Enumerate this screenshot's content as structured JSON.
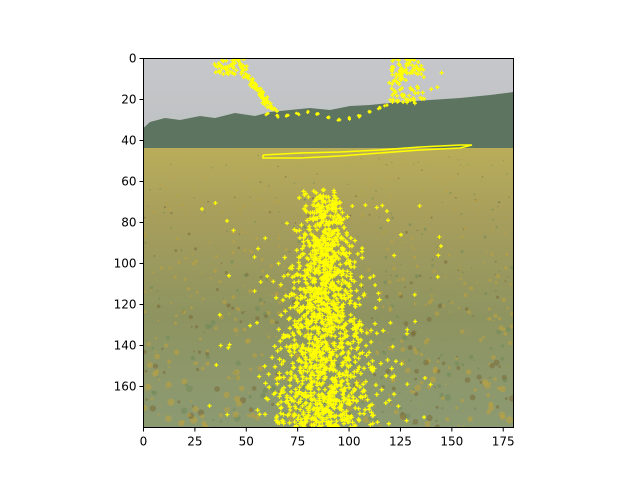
{
  "chart_data": {
    "type": "image",
    "title": "",
    "xlabel": "",
    "ylabel": "",
    "xlim": [
      0,
      180
    ],
    "ylim": [
      180,
      0
    ],
    "x_ticks": [
      0,
      25,
      50,
      75,
      100,
      125,
      150,
      175
    ],
    "y_ticks": [
      0,
      20,
      40,
      60,
      80,
      100,
      120,
      140,
      160
    ],
    "image_description_colors": {
      "sky": "#c8c9cc",
      "tree_line": "#5f7a5f",
      "field_far": "#b5a860",
      "field_near": "#8f9a6c",
      "marker": "#ffff00"
    },
    "marker_symbol": "+",
    "overlay_regions": [
      {
        "name": "upper-left-cluster",
        "x_range": [
          35,
          65
        ],
        "y_range": [
          0,
          28
        ]
      },
      {
        "name": "upper-right-cluster",
        "x_range": [
          115,
          145
        ],
        "y_range": [
          0,
          25
        ]
      },
      {
        "name": "horizon-line",
        "points": [
          [
            58,
            47
          ],
          [
            160,
            41
          ]
        ]
      },
      {
        "name": "central-dense-cluster",
        "x_range": [
          40,
          140
        ],
        "y_range": [
          64,
          180
        ]
      }
    ]
  }
}
